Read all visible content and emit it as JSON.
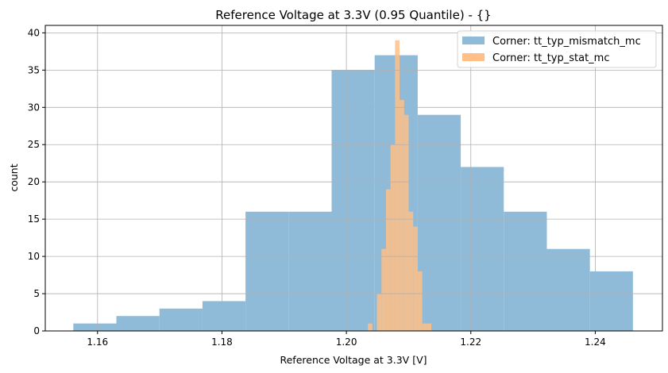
{
  "chart_data": {
    "type": "bar",
    "subtype": "histogram",
    "title": "Reference Voltage at 3.3V (0.95 Quantile) - {}",
    "xlabel": "Reference Voltage at 3.3V [V]",
    "ylabel": "count",
    "xlim": [
      1.1516,
      1.2508
    ],
    "ylim": [
      0,
      41
    ],
    "xticks": [
      1.16,
      1.18,
      1.2,
      1.22,
      1.24
    ],
    "xtick_labels": [
      "1.16",
      "1.18",
      "1.20",
      "1.22",
      "1.24"
    ],
    "yticks": [
      0,
      5,
      10,
      15,
      20,
      25,
      30,
      35,
      40
    ],
    "ytick_labels": [
      "0",
      "5",
      "10",
      "15",
      "20",
      "25",
      "30",
      "35",
      "40"
    ],
    "grid": true,
    "legend_placement": "upper-right",
    "series": [
      {
        "name": "Corner: tt_typ_mismatch_mc",
        "color": "#8fbbd9",
        "bin_start": 1.15611,
        "bin_end": 1.24606,
        "counts": [
          1,
          2,
          3,
          4,
          16,
          16,
          35,
          37,
          29,
          22,
          16,
          11,
          8
        ]
      },
      {
        "name": "Corner: tt_typ_stat_mc",
        "color": "#ffbf86",
        "bin_start": 1.20345,
        "bin_end": 1.21365,
        "counts": [
          1,
          0,
          5,
          11,
          19,
          25,
          39,
          31,
          29,
          16,
          14,
          8,
          1,
          1
        ]
      }
    ]
  }
}
